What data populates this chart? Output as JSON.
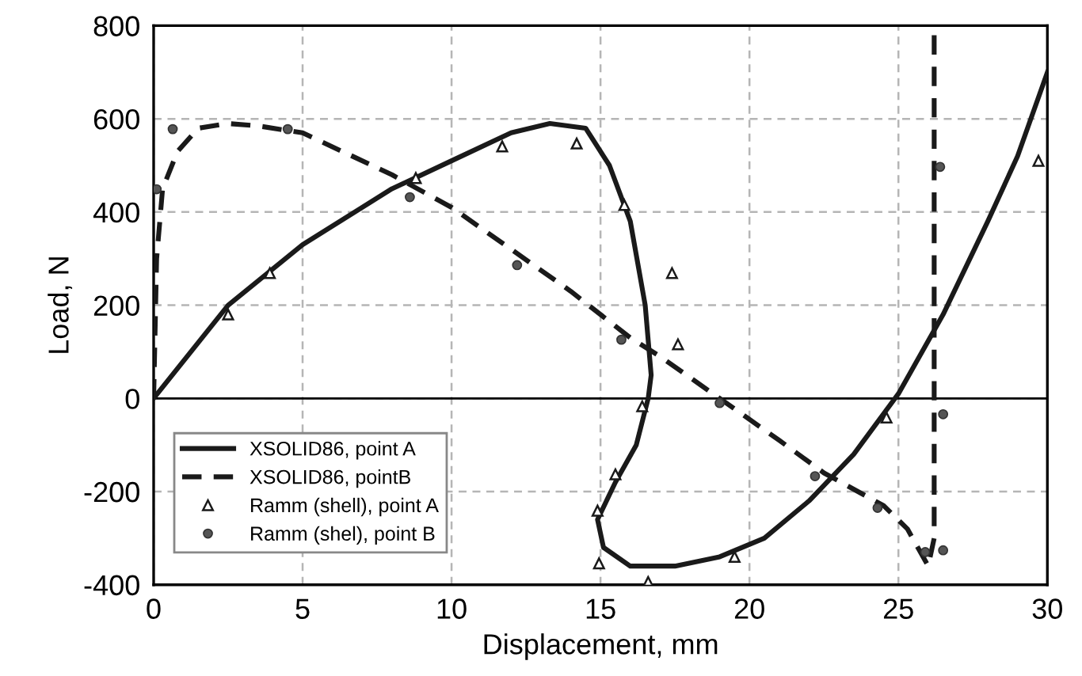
{
  "chart_data": {
    "type": "line",
    "xlabel": "Displacement, mm",
    "ylabel": "Load, N",
    "xlim": [
      0,
      30
    ],
    "ylim": [
      -400,
      800
    ],
    "xticks": [
      0,
      5,
      10,
      15,
      20,
      25,
      30
    ],
    "yticks": [
      -400,
      -200,
      0,
      200,
      400,
      600,
      800
    ],
    "grid": true,
    "legend": "bottom left",
    "ref_lines": [
      {
        "axis": "y",
        "value": 0,
        "color": "#000000",
        "line_style": "solid"
      }
    ],
    "series": [
      {
        "name": "XSOLID86, point A",
        "color": "#1a1a1a",
        "line_style": "solid",
        "marker": "none",
        "x": [
          0,
          2.5,
          5,
          8,
          10,
          12,
          13.3,
          14.5,
          15.3,
          16,
          16.5,
          16.7,
          16.6,
          16.2,
          15.5,
          14.9,
          15.1,
          16,
          17.5,
          19,
          20.5,
          22,
          23.5,
          25,
          26.5,
          28,
          29,
          30
        ],
        "values": [
          0,
          200,
          330,
          450,
          510,
          570,
          590,
          580,
          500,
          380,
          200,
          50,
          0,
          -100,
          -180,
          -260,
          -320,
          -360,
          -360,
          -340,
          -300,
          -220,
          -120,
          10,
          180,
          380,
          520,
          700
        ]
      },
      {
        "name": "XSOLID86, pointB",
        "color": "#1a1a1a",
        "line_style": "dashed",
        "marker": "none",
        "x": [
          0,
          0.1,
          0.3,
          0.8,
          1.5,
          2.5,
          3.5,
          5,
          8,
          10,
          12,
          14,
          16,
          17,
          19,
          21,
          22.5,
          24.5,
          25.3,
          26,
          26.2,
          26.2,
          26.2,
          26.2
        ],
        "values": [
          0,
          300,
          450,
          530,
          580,
          590,
          585,
          570,
          480,
          410,
          320,
          230,
          130,
          90,
          0,
          -90,
          -160,
          -230,
          -280,
          -360,
          -300,
          0,
          400,
          800
        ]
      },
      {
        "name": "Ramm (shell), point A",
        "type": "scatter",
        "color": "#1a1a1a",
        "marker": "triangle",
        "x": [
          2.5,
          3.9,
          8.8,
          11.7,
          14.2,
          15.8,
          17.4,
          17.6,
          16.4,
          15.5,
          14.9,
          14.95,
          16.6,
          19.5,
          24.6,
          29.7
        ],
        "values": [
          180,
          269,
          473,
          541,
          547,
          415,
          269,
          116,
          -17,
          -163,
          -241,
          -354,
          -394,
          -340,
          -41,
          510
        ]
      },
      {
        "name": "Ramm (shel), point B",
        "type": "scatter",
        "color": "#555555",
        "marker": "circle",
        "x": [
          0.1,
          0.64,
          4.5,
          8.6,
          12.2,
          15.7,
          19.0,
          22.2,
          24.3,
          25.9,
          26.5,
          26.5,
          26.4
        ],
        "values": [
          449,
          578,
          578,
          432,
          286,
          126,
          -10,
          -167,
          -235,
          -330,
          -326,
          -34,
          497
        ]
      }
    ]
  }
}
